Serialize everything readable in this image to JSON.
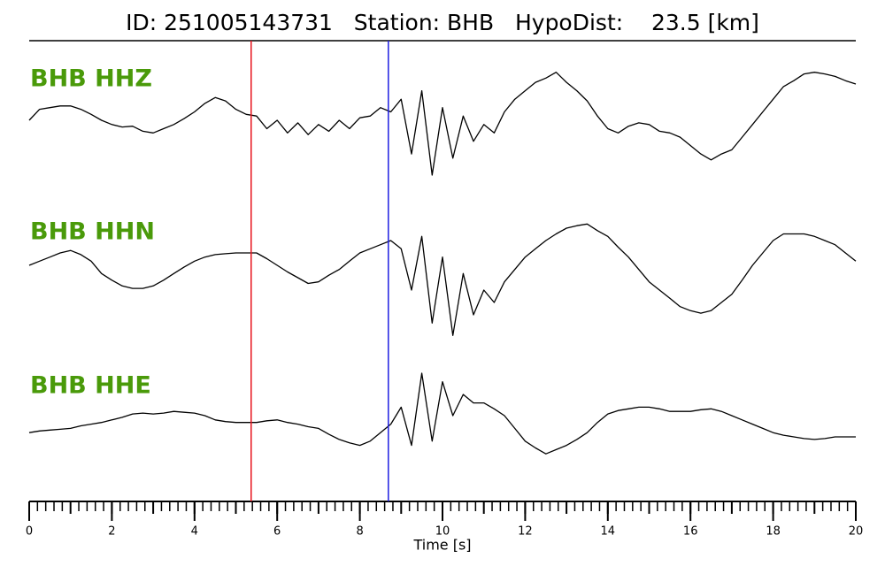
{
  "chart_data": {
    "type": "waveform",
    "title": "ID: 251005143731   Station: BHB   HypoDist:    23.5 [km]",
    "xlabel": "Time [s]",
    "xlim": [
      0,
      20
    ],
    "xticks": [
      0,
      2,
      4,
      6,
      8,
      10,
      12,
      14,
      16,
      18,
      20
    ],
    "xminor_step": 0.2,
    "label_color": "#4a9a0a",
    "line_color": "#000000",
    "markers": [
      {
        "x": 5.37,
        "color": "#e8141e"
      },
      {
        "x": 8.69,
        "color": "#1e1ee0"
      }
    ],
    "x": [
      0,
      0.25,
      0.5,
      0.75,
      1,
      1.25,
      1.5,
      1.75,
      2,
      2.25,
      2.5,
      2.75,
      3,
      3.25,
      3.5,
      3.75,
      4,
      4.25,
      4.5,
      4.75,
      5,
      5.25,
      5.5,
      5.75,
      6,
      6.25,
      6.5,
      6.75,
      7,
      7.25,
      7.5,
      7.75,
      8,
      8.25,
      8.5,
      8.75,
      9,
      9.25,
      9.5,
      9.75,
      10,
      10.25,
      10.5,
      10.75,
      11,
      11.25,
      11.5,
      11.75,
      12,
      12.25,
      12.5,
      12.75,
      13,
      13.25,
      13.5,
      13.75,
      14,
      14.25,
      14.5,
      14.75,
      15,
      15.25,
      15.5,
      15.75,
      16,
      16.25,
      16.5,
      16.75,
      17,
      17.25,
      17.5,
      17.75,
      18,
      18.25,
      18.5,
      18.75,
      19,
      19.25,
      19.5,
      19.75,
      20
    ],
    "series": [
      {
        "name": "BHB HHZ",
        "ylim": [
          -75,
          75
        ],
        "values": [
          11,
          24,
          26,
          28,
          28,
          24,
          18,
          11,
          6,
          3,
          4,
          -2,
          -4,
          1,
          6,
          13,
          21,
          31,
          38,
          34,
          24,
          18,
          16,
          1,
          11,
          -4,
          8,
          -6,
          6,
          -2,
          11,
          1,
          14,
          16,
          26,
          21,
          36,
          -29,
          46,
          -54,
          26,
          -34,
          16,
          -14,
          6,
          -4,
          21,
          36,
          46,
          56,
          61,
          68,
          56,
          46,
          34,
          16,
          1,
          -4,
          4,
          8,
          6,
          -2,
          -4,
          -9,
          -19,
          -29,
          -36,
          -29,
          -24,
          -9,
          6,
          21,
          36,
          51,
          58,
          66,
          68,
          66,
          63,
          58,
          54
        ]
      },
      {
        "name": "BHB HHN",
        "ylim": [
          -75,
          75
        ],
        "values": [
          0,
          5,
          10,
          15,
          18,
          13,
          5,
          -10,
          -18,
          -25,
          -28,
          -28,
          -25,
          -18,
          -10,
          -2,
          5,
          10,
          13,
          14,
          15,
          15,
          15,
          8,
          0,
          -8,
          -15,
          -22,
          -20,
          -12,
          -5,
          5,
          15,
          20,
          25,
          30,
          20,
          -30,
          35,
          -70,
          10,
          -85,
          -10,
          -60,
          -30,
          -45,
          -20,
          -5,
          10,
          20,
          30,
          38,
          45,
          48,
          50,
          42,
          35,
          22,
          10,
          -5,
          -20,
          -30,
          -40,
          -50,
          -55,
          -58,
          -55,
          -45,
          -35,
          -18,
          0,
          15,
          30,
          38,
          38,
          38,
          35,
          30,
          25,
          15,
          5
        ]
      },
      {
        "name": "BHB HHE",
        "ylim": [
          -75,
          75
        ],
        "values": [
          -20,
          -18,
          -17,
          -16,
          -15,
          -12,
          -10,
          -8,
          -5,
          -2,
          2,
          3,
          2,
          3,
          5,
          4,
          3,
          0,
          -5,
          -7,
          -8,
          -8,
          -8,
          -6,
          -5,
          -8,
          -10,
          -13,
          -15,
          -22,
          -28,
          -32,
          -35,
          -30,
          -20,
          -10,
          10,
          -35,
          50,
          -30,
          40,
          0,
          25,
          15,
          15,
          8,
          0,
          -15,
          -30,
          -38,
          -45,
          -40,
          -35,
          -28,
          -20,
          -8,
          2,
          6,
          8,
          10,
          10,
          8,
          5,
          5,
          5,
          7,
          8,
          5,
          0,
          -5,
          -10,
          -15,
          -20,
          -23,
          -25,
          -27,
          -28,
          -27,
          -25,
          -25,
          -25
        ]
      }
    ]
  }
}
